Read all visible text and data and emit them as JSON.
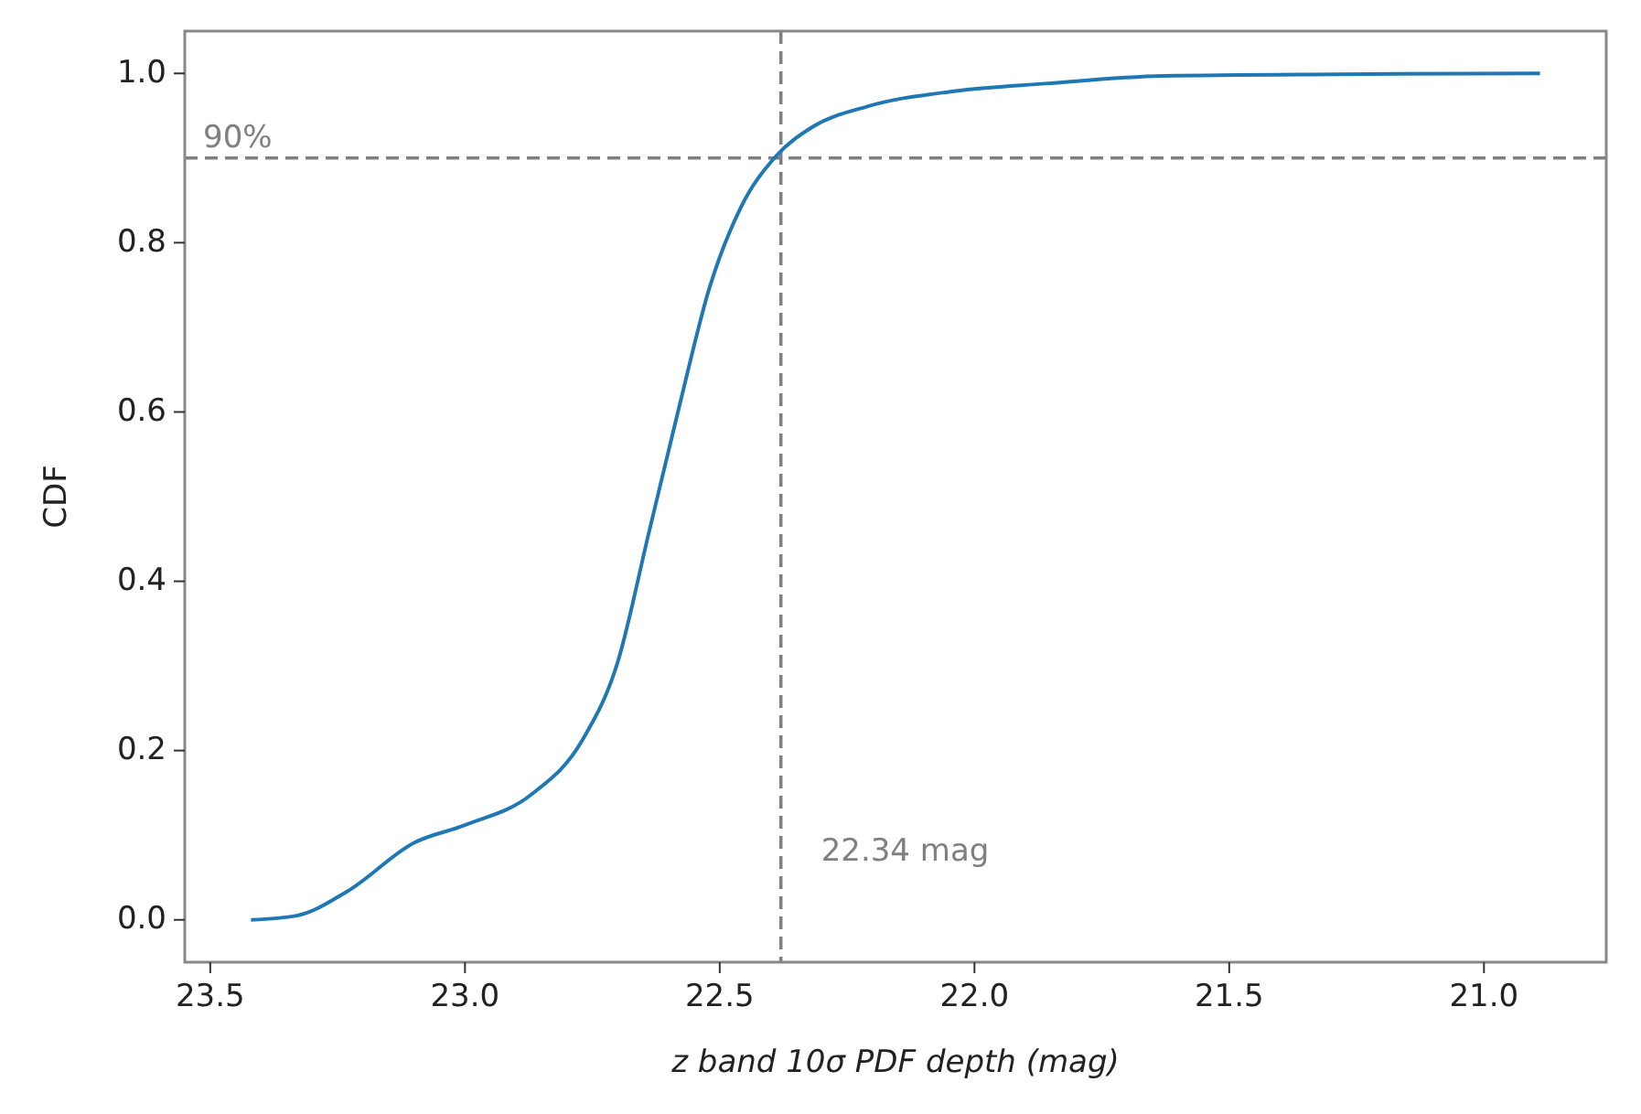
{
  "chart_data": {
    "type": "line",
    "xlabel": "z band 10σ PDF depth (mag)",
    "ylabel": "CDF",
    "xlim": [
      23.55,
      20.76
    ],
    "ylim": [
      -0.05,
      1.05
    ],
    "xticks": [
      23.5,
      {
        "value": 23.0,
        "label": "23.0"
      },
      22.5,
      {
        "value": 22.0,
        "label": "22.0"
      },
      21.5,
      {
        "value": 21.0,
        "label": "21.0"
      }
    ],
    "yticks": [
      {
        "value": 0,
        "label": "0.0"
      },
      0.2,
      0.4,
      0.6,
      0.8,
      {
        "value": 1,
        "label": "1.0"
      }
    ],
    "grid": false,
    "marker": "none",
    "line_style": "solid",
    "series": [
      {
        "color": "#1f77b4",
        "x": [
          23.42,
          23.33,
          23.23,
          23.1,
          23.0,
          22.87,
          22.77,
          22.7,
          22.64,
          22.58,
          22.52,
          22.46,
          22.39,
          22.32,
          22.21,
          22.04,
          21.86,
          21.63,
          21.29,
          20.89
        ],
        "values": [
          0.0,
          0.005,
          0.034,
          0.091,
          0.112,
          0.148,
          0.212,
          0.305,
          0.455,
          0.605,
          0.747,
          0.84,
          0.902,
          0.936,
          0.961,
          0.979,
          0.988,
          0.997,
          0.999,
          1.0
        ]
      }
    ],
    "ref_lines": [
      {
        "axis": "y",
        "value": 0.9,
        "label": "90%",
        "color": "#808080",
        "line_style": "dashed"
      },
      {
        "axis": "x",
        "value": 22.38,
        "label": "22.34 mag",
        "color": "#808080",
        "line_style": "dashed"
      }
    ]
  }
}
